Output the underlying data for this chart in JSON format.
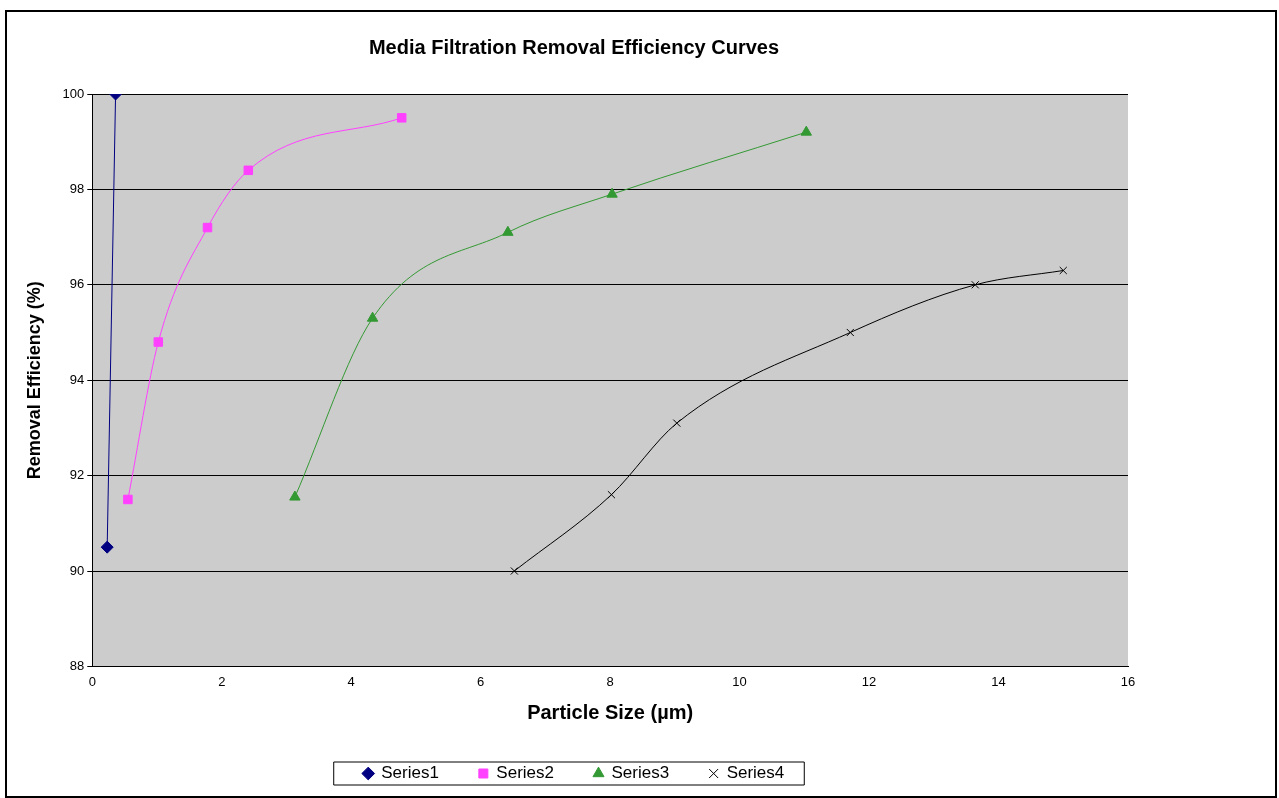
{
  "chart_data": {
    "type": "line",
    "title": "Media Filtration Removal Efficiency Curves",
    "xlabel": "Particle Size (µm)",
    "ylabel": "Removal Efficiency (%)",
    "xlim": [
      0,
      16
    ],
    "xticks": [
      0,
      2,
      4,
      6,
      8,
      10,
      12,
      14,
      16
    ],
    "ylim": [
      88,
      100
    ],
    "yticks": [
      88,
      90,
      92,
      94,
      96,
      98,
      100
    ],
    "grid": "y",
    "legend": "bottom",
    "line_style": "solid",
    "series": [
      {
        "name": "Series1",
        "color": "#000080",
        "marker": "diamond",
        "x": [
          0.23,
          0.36
        ],
        "values": [
          90.5,
          100
        ]
      },
      {
        "name": "Series2",
        "color": "#ff40ff",
        "marker": "square",
        "x": [
          0.55,
          1.02,
          1.78,
          2.41,
          4.78
        ],
        "values": [
          91.5,
          94.8,
          97.2,
          98.4,
          99.5
        ]
      },
      {
        "name": "Series3",
        "color": "#339933",
        "marker": "triangle",
        "x": [
          3.13,
          4.33,
          6.42,
          8.03,
          11.03
        ],
        "values": [
          91.55,
          95.3,
          97.1,
          97.9,
          99.2
        ]
      },
      {
        "name": "Series4",
        "color": "#000000",
        "marker": "cross",
        "x": [
          6.52,
          8.02,
          9.03,
          11.71,
          13.64,
          15
        ],
        "values": [
          90,
          91.6,
          93.1,
          95,
          96,
          96.3
        ]
      }
    ]
  }
}
